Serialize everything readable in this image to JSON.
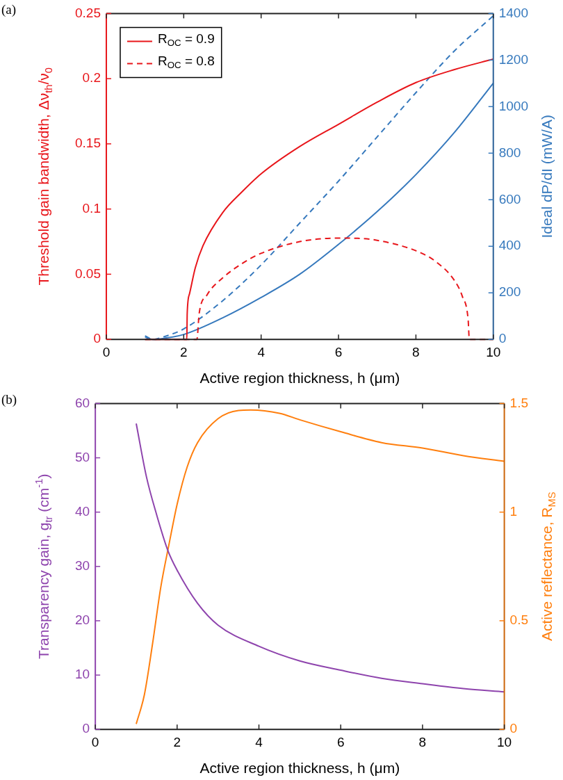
{
  "chart_data": [
    {
      "type": "line",
      "title": "(a)",
      "xlabel": "Active region thickness, h (μm)",
      "ylabel": "Threshold gain bandwidth, Δν$_{th}$/ν$_{0}$",
      "y2label": "Ideal dP/dI (mW/A)",
      "xlim": [
        0,
        10
      ],
      "xticks": [
        0,
        2,
        4,
        6,
        8,
        10
      ],
      "ylim": [
        0,
        0.25
      ],
      "yticks": [
        0,
        0.05,
        0.1,
        0.15,
        0.2,
        0.25
      ],
      "y2lim": [
        0,
        1400
      ],
      "y2ticks": [
        0,
        200,
        400,
        600,
        800,
        1000,
        1200,
        1400
      ],
      "legend": "top left",
      "grid": false,
      "marker": "none",
      "series": [
        {
          "name": "R$_{OC}$ = 0.9",
          "color": "#e8161b",
          "line_style": "solid",
          "x": [
            1,
            1.5,
            2.08,
            2.09,
            2.15,
            2.3,
            2.5,
            3,
            3.5,
            4,
            5,
            6,
            7,
            8,
            9,
            10
          ],
          "values": [
            0,
            0,
            0,
            0.02,
            0.035,
            0.055,
            0.072,
            0.097,
            0.113,
            0.127,
            0.148,
            0.165,
            0.182,
            0.197,
            0.207,
            0.215
          ]
        },
        {
          "name": "R$_{OC}$ = 0.8",
          "color": "#e8161b",
          "line_style": "dashed",
          "x": [
            1,
            2,
            2.34,
            2.4,
            2.6,
            3,
            3.5,
            4,
            5,
            6,
            6.5,
            7,
            8,
            8.5,
            9,
            9.2,
            9.35,
            9.38,
            10
          ],
          "values": [
            0,
            0,
            0,
            0.02,
            0.034,
            0.047,
            0.058,
            0.066,
            0.075,
            0.0777,
            0.0775,
            0.076,
            0.068,
            0.06,
            0.045,
            0.033,
            0.015,
            0,
            0
          ]
        },
        {
          "color": "#3679bd",
          "line_style": "solid",
          "axis": "y2",
          "x": [
            1,
            1.2,
            1.5,
            2,
            3,
            4,
            5,
            6,
            7,
            8,
            9,
            10
          ],
          "values": [
            10,
            0,
            5,
            21,
            92,
            180,
            280,
            408,
            549,
            708,
            890,
            1101
          ]
        },
        {
          "color": "#3679bd",
          "line_style": "dashed",
          "axis": "y2",
          "x": [
            1,
            1.2,
            1.5,
            2,
            3,
            4,
            5,
            6,
            7,
            8,
            9,
            10
          ],
          "values": [
            15,
            0,
            12,
            45,
            165,
            320,
            500,
            680,
            870,
            1060,
            1240,
            1390
          ]
        }
      ]
    },
    {
      "type": "line",
      "title": "(b)",
      "xlabel": "Active region thickness, h (μm)",
      "ylabel": "Transparency gain, g$_{tr}$ (cm$^{-1}$)",
      "y2label": "Active reflectance, R$_{MS}$",
      "xlim": [
        0,
        10
      ],
      "xticks": [
        0,
        2,
        4,
        6,
        8,
        10
      ],
      "ylim": [
        0,
        60
      ],
      "yticks": [
        0,
        10,
        20,
        30,
        40,
        50,
        60
      ],
      "y2lim": [
        0,
        1.5
      ],
      "y2ticks": [
        0,
        0.5,
        1,
        1.5
      ],
      "grid": false,
      "marker": "none",
      "series": [
        {
          "color": "#8e44ad",
          "x": [
            1,
            1.25,
            1.5,
            1.77,
            2,
            2.5,
            3,
            4,
            5,
            6,
            7,
            8,
            9,
            10
          ],
          "values": [
            56.3,
            46.5,
            39.5,
            33,
            29.3,
            23.2,
            19.2,
            15.3,
            12.6,
            10.9,
            9.4,
            8.4,
            7.5,
            6.9
          ]
        },
        {
          "color": "#ff7f0e",
          "axis": "y2",
          "x": [
            1,
            1.2,
            1.4,
            1.6,
            1.8,
            2,
            2.25,
            2.5,
            3,
            3.5,
            3.8,
            4.5,
            5,
            6,
            7,
            8,
            9,
            10
          ],
          "values": [
            0.025,
            0.16,
            0.395,
            0.654,
            0.85,
            1.036,
            1.21,
            1.32,
            1.43,
            1.468,
            1.47,
            1.455,
            1.425,
            1.37,
            1.32,
            1.295,
            1.26,
            1.234
          ]
        }
      ]
    }
  ]
}
